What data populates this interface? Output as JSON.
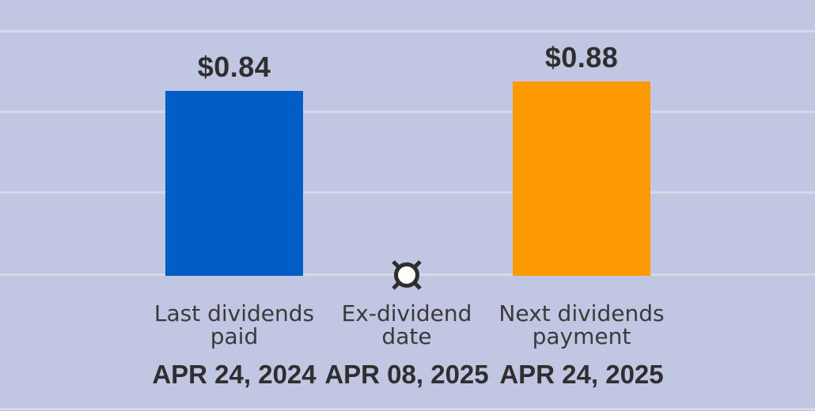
{
  "chart_data": {
    "type": "bar",
    "title": "",
    "xlabel": "",
    "ylabel": "",
    "categories": [
      "Last dividends paid",
      "Ex-dividend date",
      "Next dividends payment"
    ],
    "category_dates": [
      "APR 24, 2024",
      "APR 08, 2025",
      "APR 24, 2025"
    ],
    "values": [
      0.84,
      null,
      0.88
    ],
    "data_labels": [
      "$0.84",
      null,
      "$0.88"
    ],
    "bar_colors": [
      "#015ec6",
      null,
      "#fd9a01"
    ],
    "ylim": [
      0,
      1.1
    ],
    "grid": true,
    "legend": false,
    "background_color": "#c1c7e2",
    "gridline_color": "#d4dae6",
    "text_color": "#2f2f2f",
    "marker": {
      "index": 1,
      "type": "circle-x",
      "fill": "#ffffff",
      "stroke": "#2d2d2d"
    },
    "points": [
      {
        "label_line1": "Last dividends",
        "label_line2": "paid",
        "date": "APR 24, 2024",
        "value": 0.84,
        "value_label": "$0.84",
        "color": "#015ec6",
        "type": "bar"
      },
      {
        "label_line1": "Ex-dividend",
        "label_line2": "date",
        "date": "APR 08, 2025",
        "value": null,
        "value_label": null,
        "color": null,
        "type": "circle-x-marker"
      },
      {
        "label_line1": "Next dividends",
        "label_line2": "payment",
        "date": "APR 24, 2025",
        "value": 0.88,
        "value_label": "$0.88",
        "color": "#fd9a01",
        "type": "bar"
      }
    ]
  }
}
